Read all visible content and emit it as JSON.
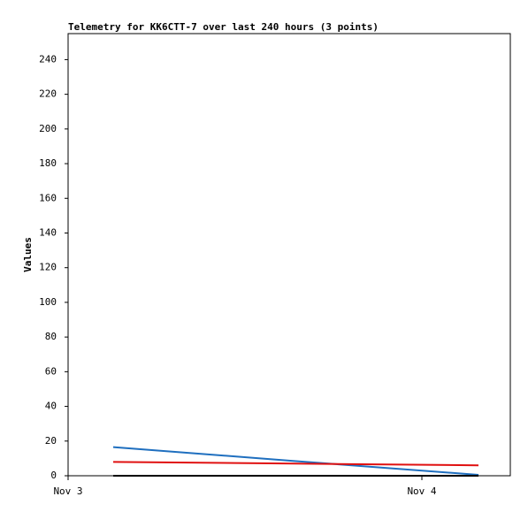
{
  "chart_data": {
    "type": "line",
    "title": "Telemetry for KK6CTT-7 over last 240 hours (3 points)",
    "y_label": "Values",
    "x": [
      0.1275,
      0.64,
      1.16
    ],
    "xlim": [
      0,
      1.25
    ],
    "xticks": [
      {
        "value": 0,
        "label": "Nov 3"
      },
      {
        "value": 1,
        "label": "Nov 4"
      }
    ],
    "ylim": [
      0,
      255
    ],
    "yticks": [
      0,
      20,
      40,
      60,
      80,
      100,
      120,
      140,
      160,
      180,
      200,
      220,
      240
    ],
    "series": [
      {
        "color": "#1f6fbf",
        "values": [
          16.5,
          8.5,
          0.5
        ]
      },
      {
        "color": "#e01010",
        "values": [
          8,
          7,
          6
        ]
      },
      {
        "color": "#000000",
        "values": [
          0,
          0,
          0
        ]
      }
    ]
  }
}
